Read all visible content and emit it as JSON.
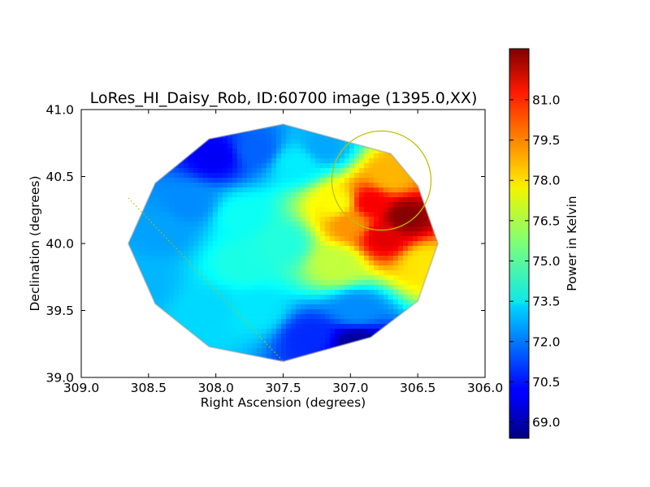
{
  "chart_data": {
    "type": "heatmap",
    "title": "LoRes_HI_Daisy_Rob, ID:60700 image (1395.0,XX)",
    "xlabel": "Right Ascension (degrees)",
    "ylabel": "Declination (degrees)",
    "xlim": [
      309.0,
      306.0
    ],
    "ylim": [
      39.0,
      41.0
    ],
    "xticks": [
      "309.0",
      "308.5",
      "308.0",
      "307.5",
      "307.0",
      "306.5",
      "306.0"
    ],
    "yticks": [
      "39.0",
      "39.5",
      "40.0",
      "40.5",
      "41.0"
    ],
    "x_inverted": true,
    "colormap": "jet",
    "colorbar": {
      "label": "Power in Kelvin",
      "range": [
        68.4,
        82.9
      ],
      "ticks": [
        "69.0",
        "70.5",
        "72.0",
        "73.5",
        "75.0",
        "76.5",
        "78.0",
        "79.5",
        "81.0"
      ]
    },
    "map_boundary": [
      [
        308.05,
        40.78
      ],
      [
        307.5,
        40.89
      ],
      [
        307.1,
        40.78
      ],
      [
        306.7,
        40.67
      ],
      [
        306.5,
        40.43
      ],
      [
        306.35,
        40.0
      ],
      [
        306.5,
        39.57
      ],
      [
        306.85,
        39.3
      ],
      [
        307.5,
        39.12
      ],
      [
        308.05,
        39.23
      ],
      [
        308.45,
        39.55
      ],
      [
        308.65,
        40.0
      ],
      [
        308.45,
        40.45
      ]
    ],
    "samples": [
      [
        307.5,
        40.0,
        74.3
      ],
      [
        306.6,
        40.2,
        82.8
      ],
      [
        306.85,
        40.3,
        81.2
      ],
      [
        306.75,
        40.05,
        81.5
      ],
      [
        307.0,
        40.15,
        79.0
      ],
      [
        307.1,
        40.3,
        77.5
      ],
      [
        306.7,
        40.5,
        78.5
      ],
      [
        306.45,
        39.85,
        77.8
      ],
      [
        307.1,
        39.85,
        76.6
      ],
      [
        306.95,
        39.5,
        72.2
      ],
      [
        306.95,
        39.25,
        68.8
      ],
      [
        307.3,
        39.3,
        70.8
      ],
      [
        307.7,
        39.5,
        73.5
      ],
      [
        308.05,
        39.5,
        73.3
      ],
      [
        308.0,
        40.65,
        70.1
      ],
      [
        307.7,
        40.7,
        71.6
      ],
      [
        307.4,
        40.6,
        73.6
      ],
      [
        308.4,
        40.1,
        72.5
      ],
      [
        308.2,
        40.3,
        72.2
      ],
      [
        307.8,
        40.2,
        74.0
      ],
      [
        307.8,
        39.85,
        74.2
      ],
      [
        308.55,
        39.7,
        72.8
      ],
      [
        307.2,
        40.72,
        72.6
      ]
    ],
    "overlays": {
      "circle": {
        "center": [
          306.77,
          40.47
        ],
        "radius_deg": 0.37,
        "color": "#bfbf00"
      },
      "dotted_line": {
        "from": [
          308.65,
          40.34
        ],
        "to": [
          307.5,
          39.12
        ],
        "color": "#bfbf00"
      }
    },
    "grid": false
  }
}
